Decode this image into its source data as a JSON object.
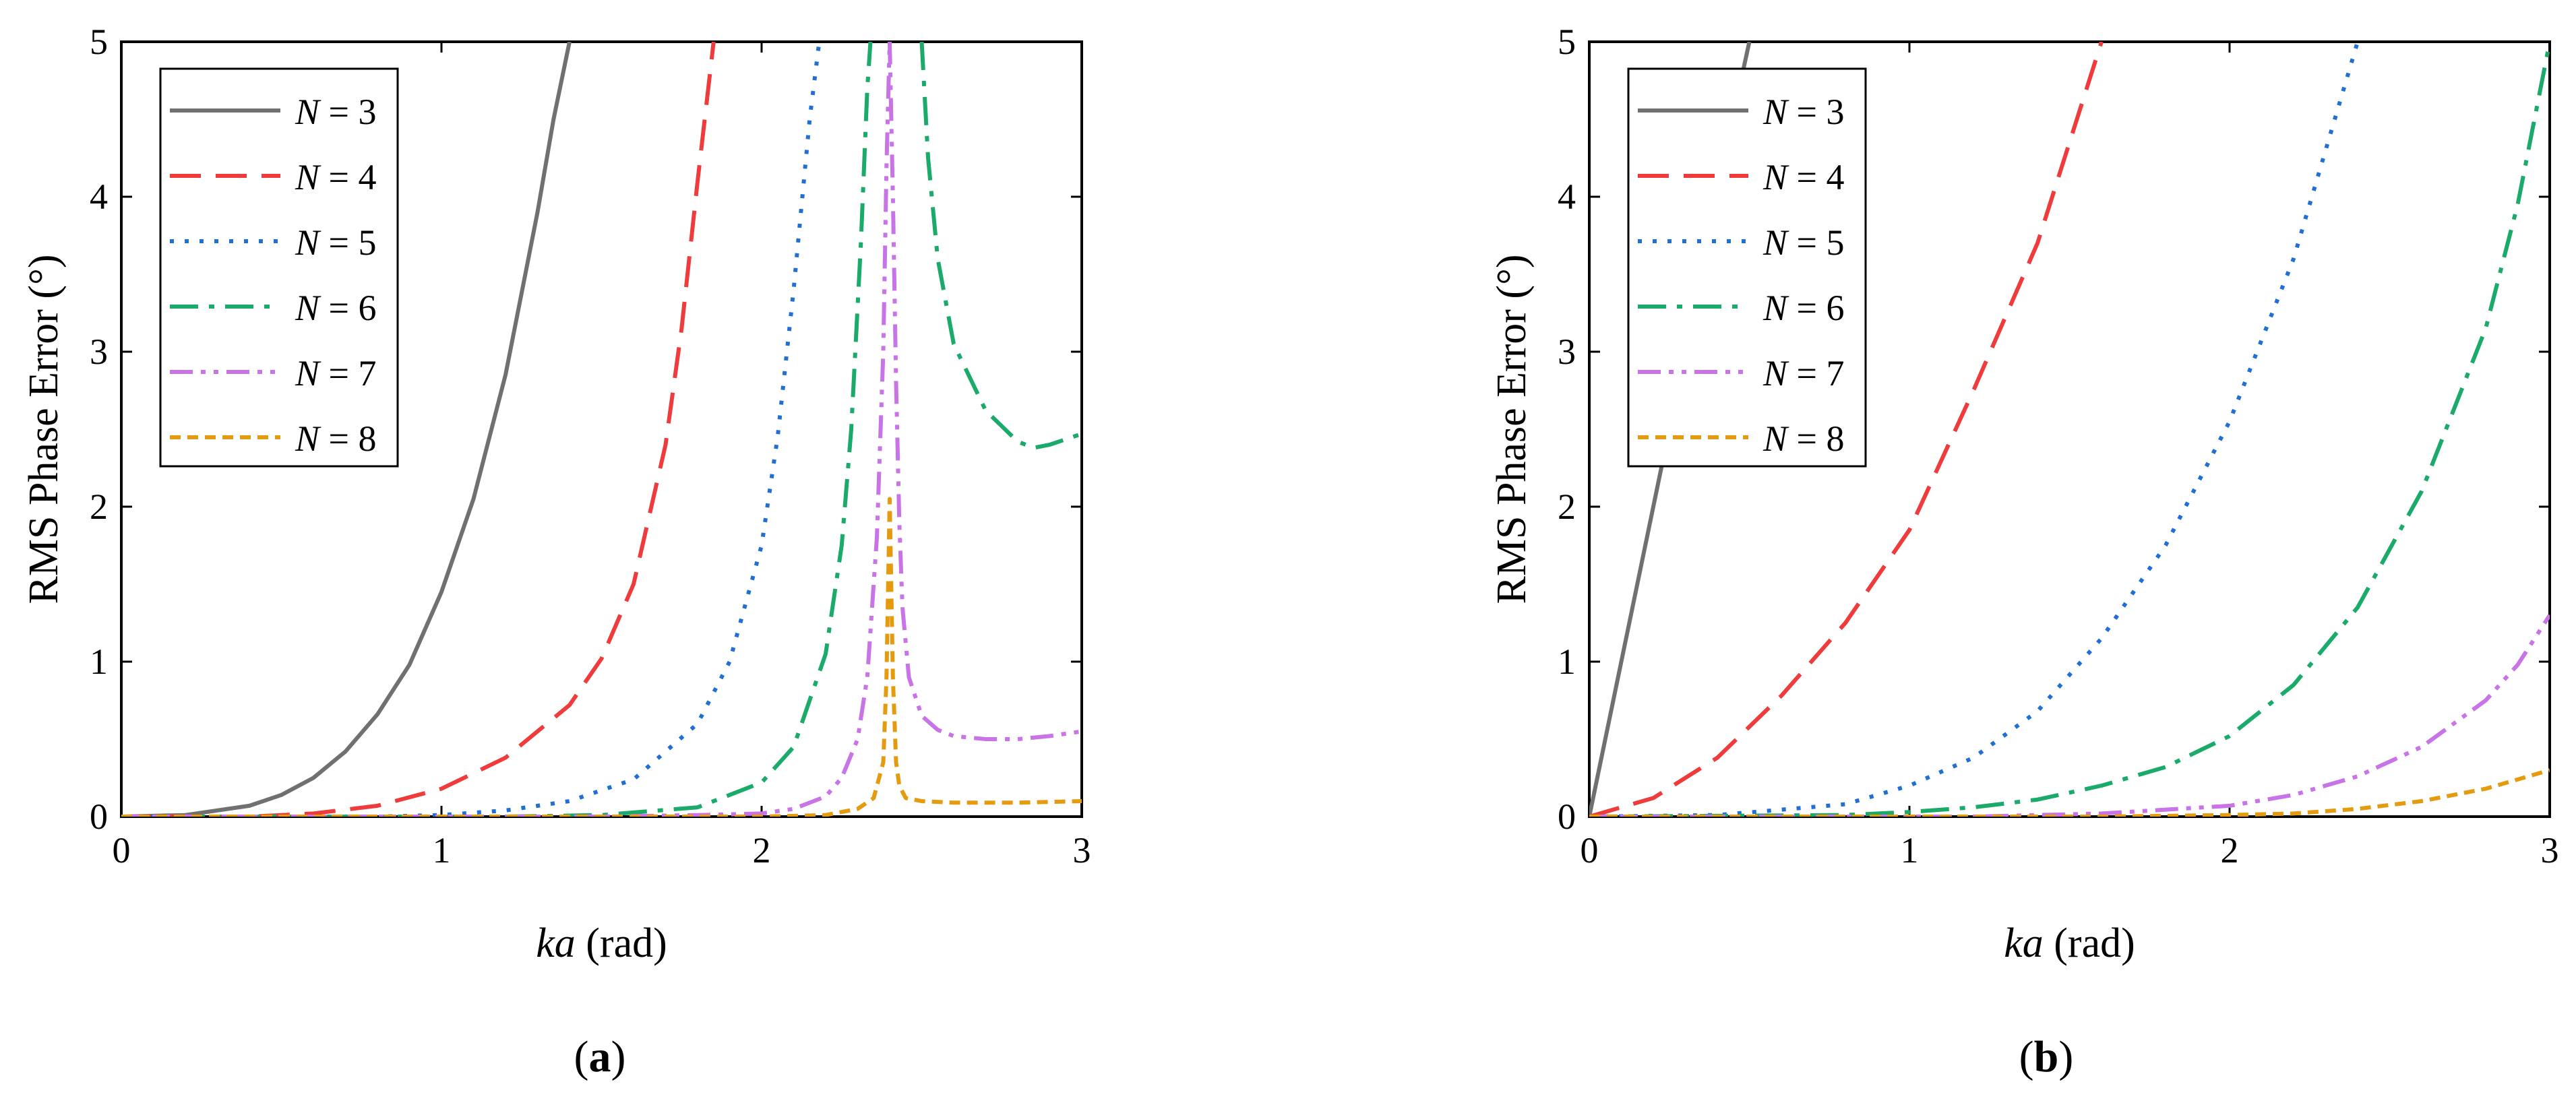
{
  "chart_data": [
    {
      "type": "line",
      "panel_label": "a",
      "xlabel_italic": "ka",
      "xlabel_rest": " (rad)",
      "ylabel": "RMS Phase Error (°)",
      "xlim": [
        0,
        3
      ],
      "ylim": [
        0,
        5
      ],
      "xticks": [
        "0",
        "1",
        "2",
        "3"
      ],
      "yticks": [
        "0",
        "1",
        "2",
        "3",
        "4",
        "5"
      ],
      "legend_position": "top-left",
      "series": [
        {
          "name": "N = 3",
          "n": "3",
          "color": "#707070",
          "dash": "solid",
          "x": [
            0,
            0.2,
            0.4,
            0.5,
            0.6,
            0.7,
            0.8,
            0.9,
            1.0,
            1.1,
            1.2,
            1.3,
            1.35,
            1.4
          ],
          "y": [
            0,
            0.01,
            0.07,
            0.14,
            0.25,
            0.42,
            0.66,
            0.98,
            1.45,
            2.05,
            2.85,
            3.9,
            4.5,
            5.0
          ]
        },
        {
          "name": "N = 4",
          "n": "4",
          "color": "#ef3b3b",
          "dash": "dash",
          "x": [
            0,
            0.4,
            0.6,
            0.8,
            1.0,
            1.2,
            1.4,
            1.5,
            1.6,
            1.7,
            1.75,
            1.8,
            1.85
          ],
          "y": [
            0,
            0.0,
            0.02,
            0.07,
            0.18,
            0.38,
            0.72,
            1.02,
            1.5,
            2.4,
            3.15,
            4.1,
            5.0
          ]
        },
        {
          "name": "N = 5",
          "n": "5",
          "color": "#1f6fd6",
          "dash": "dot",
          "x": [
            0,
            0.8,
            1.0,
            1.2,
            1.4,
            1.6,
            1.8,
            1.9,
            2.0,
            2.05,
            2.1,
            2.15,
            2.18
          ],
          "y": [
            0,
            0.0,
            0.01,
            0.04,
            0.1,
            0.24,
            0.6,
            1.0,
            1.75,
            2.45,
            3.4,
            4.5,
            5.0
          ]
        },
        {
          "name": "N = 6",
          "n": "6",
          "color": "#1aaa6a",
          "dash": "dashdot",
          "x": [
            0,
            1.2,
            1.5,
            1.8,
            2.0,
            2.1,
            2.2,
            2.25,
            2.28,
            2.31,
            2.33,
            2.34,
            null,
            2.5,
            2.52,
            2.55,
            2.6,
            2.7,
            2.8,
            2.85,
            2.9,
            3.0
          ],
          "y": [
            0,
            0.0,
            0.01,
            0.06,
            0.22,
            0.45,
            1.05,
            1.75,
            2.5,
            3.7,
            4.7,
            5.0,
            null,
            5.0,
            4.25,
            3.6,
            3.05,
            2.62,
            2.42,
            2.38,
            2.4,
            2.47
          ]
        },
        {
          "name": "N = 7",
          "n": "7",
          "color": "#c873e6",
          "dash": "dashdotdot",
          "x": [
            0,
            1.5,
            1.8,
            2.0,
            2.1,
            2.2,
            2.25,
            2.3,
            2.33,
            2.36,
            2.38,
            2.39,
            2.4,
            2.41,
            2.42,
            2.43,
            2.44,
            2.46,
            2.5,
            2.55,
            2.6,
            2.7,
            2.8,
            2.9,
            3.0
          ],
          "y": [
            0,
            0.0,
            0.01,
            0.02,
            0.05,
            0.13,
            0.25,
            0.5,
            0.9,
            1.8,
            3.0,
            4.2,
            5.0,
            4.0,
            2.8,
            1.9,
            1.35,
            0.9,
            0.65,
            0.56,
            0.52,
            0.5,
            0.5,
            0.52,
            0.55
          ]
        },
        {
          "name": "N = 8",
          "n": "8",
          "color": "#e59b10",
          "dash": "shortdash",
          "x": [
            0,
            1.8,
            2.0,
            2.2,
            2.3,
            2.35,
            2.38,
            2.39,
            2.4,
            2.41,
            2.42,
            2.43,
            2.45,
            2.5,
            2.6,
            2.8,
            3.0
          ],
          "y": [
            0,
            0.0,
            0.0,
            0.01,
            0.05,
            0.12,
            0.35,
            0.9,
            2.05,
            0.9,
            0.35,
            0.2,
            0.12,
            0.1,
            0.09,
            0.09,
            0.1
          ]
        }
      ]
    },
    {
      "type": "line",
      "panel_label": "b",
      "xlabel_italic": "ka",
      "xlabel_rest": " (rad)",
      "ylabel": "RMS Phase Error (°)",
      "xlim": [
        0,
        3
      ],
      "ylim": [
        0,
        5
      ],
      "xticks": [
        "0",
        "1",
        "2",
        "3"
      ],
      "yticks": [
        "0",
        "1",
        "2",
        "3",
        "4",
        "5"
      ],
      "legend_position": "top-left",
      "series": [
        {
          "name": "N = 3",
          "n": "3",
          "color": "#707070",
          "dash": "solid",
          "x": [
            0,
            0.1,
            0.2,
            0.3,
            0.4,
            0.5
          ],
          "y": [
            0,
            1.0,
            2.0,
            3.0,
            4.05,
            5.0
          ]
        },
        {
          "name": "N = 4",
          "n": "4",
          "color": "#ef3b3b",
          "dash": "dash",
          "x": [
            0,
            0.2,
            0.4,
            0.6,
            0.8,
            1.0,
            1.2,
            1.4,
            1.6
          ],
          "y": [
            0,
            0.12,
            0.38,
            0.78,
            1.25,
            1.85,
            2.75,
            3.7,
            5.0
          ]
        },
        {
          "name": "N = 5",
          "n": "5",
          "color": "#1f6fd6",
          "dash": "dot",
          "x": [
            0,
            0.4,
            0.8,
            1.0,
            1.2,
            1.4,
            1.6,
            1.8,
            2.0,
            2.2,
            2.4
          ],
          "y": [
            0,
            0.01,
            0.08,
            0.2,
            0.38,
            0.68,
            1.15,
            1.75,
            2.55,
            3.6,
            5.0
          ]
        },
        {
          "name": "N = 6",
          "n": "6",
          "color": "#1aaa6a",
          "dash": "dashdot",
          "x": [
            0,
            0.8,
            1.0,
            1.2,
            1.4,
            1.6,
            1.8,
            2.0,
            2.2,
            2.4,
            2.6,
            2.8,
            2.9,
            3.0
          ],
          "y": [
            0,
            0.01,
            0.03,
            0.06,
            0.11,
            0.2,
            0.32,
            0.52,
            0.85,
            1.35,
            2.1,
            3.15,
            3.95,
            5.0
          ]
        },
        {
          "name": "N = 7",
          "n": "7",
          "color": "#c873e6",
          "dash": "dashdotdot",
          "x": [
            0,
            1.2,
            1.6,
            2.0,
            2.2,
            2.4,
            2.6,
            2.8,
            2.9,
            3.0
          ],
          "y": [
            0,
            0.0,
            0.02,
            0.07,
            0.14,
            0.26,
            0.45,
            0.75,
            0.98,
            1.3
          ]
        },
        {
          "name": "N = 8",
          "n": "8",
          "color": "#e59b10",
          "dash": "shortdash",
          "x": [
            0,
            1.6,
            2.0,
            2.2,
            2.4,
            2.6,
            2.8,
            3.0
          ],
          "y": [
            0,
            0.0,
            0.01,
            0.02,
            0.05,
            0.1,
            0.18,
            0.3
          ]
        }
      ]
    }
  ]
}
